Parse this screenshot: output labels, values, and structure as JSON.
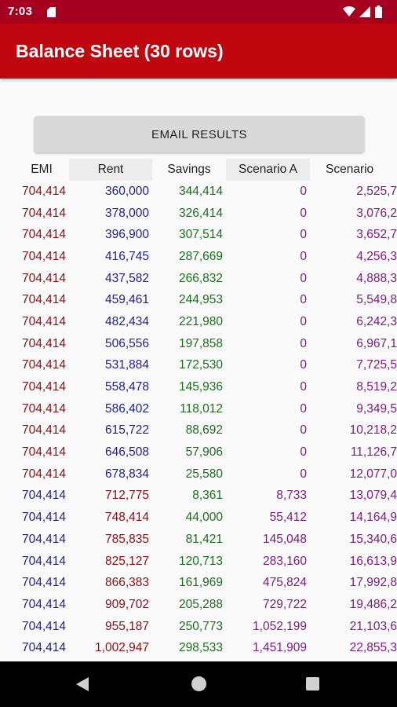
{
  "status_bar": {
    "time": "7:03"
  },
  "app_bar": {
    "title": "Balance Sheet (30 rows)"
  },
  "actions": {
    "email_label": "EMAIL RESULTS"
  },
  "table": {
    "headers": [
      "EMI",
      "Rent",
      "Savings",
      "Scenario A",
      "Scenario"
    ],
    "rows": [
      [
        "704,414",
        "360,000",
        "344,414",
        "0",
        "2,525,7"
      ],
      [
        "704,414",
        "378,000",
        "326,414",
        "0",
        "3,076,2"
      ],
      [
        "704,414",
        "396,900",
        "307,514",
        "0",
        "3,652,7"
      ],
      [
        "704,414",
        "416,745",
        "287,669",
        "0",
        "4,256,3"
      ],
      [
        "704,414",
        "437,582",
        "266,832",
        "0",
        "4,888,3"
      ],
      [
        "704,414",
        "459,461",
        "244,953",
        "0",
        "5,549,8"
      ],
      [
        "704,414",
        "482,434",
        "221,980",
        "0",
        "6,242,3"
      ],
      [
        "704,414",
        "506,556",
        "197,858",
        "0",
        "6,967,1"
      ],
      [
        "704,414",
        "531,884",
        "172,530",
        "0",
        "7,725,5"
      ],
      [
        "704,414",
        "558,478",
        "145,936",
        "0",
        "8,519,2"
      ],
      [
        "704,414",
        "586,402",
        "118,012",
        "0",
        "9,349,5"
      ],
      [
        "704,414",
        "615,722",
        "88,692",
        "0",
        "10,218,2"
      ],
      [
        "704,414",
        "646,508",
        "57,906",
        "0",
        "11,126,7"
      ],
      [
        "704,414",
        "678,834",
        "25,580",
        "0",
        "12,077,0"
      ],
      [
        "704,414",
        "712,775",
        "8,361",
        "8,733",
        "13,079,4"
      ],
      [
        "704,414",
        "748,414",
        "44,000",
        "55,412",
        "14,164,9"
      ],
      [
        "704,414",
        "785,835",
        "81,421",
        "145,048",
        "15,340,6"
      ],
      [
        "704,414",
        "825,127",
        "120,713",
        "283,160",
        "16,613,9"
      ],
      [
        "704,414",
        "866,383",
        "161,969",
        "475,824",
        "17,992,8"
      ],
      [
        "704,414",
        "909,702",
        "205,288",
        "729,722",
        "19,486,2"
      ],
      [
        "704,414",
        "955,187",
        "250,773",
        "1,052,199",
        "21,103,6"
      ],
      [
        "704,414",
        "1,002,947",
        "298,533",
        "1,451,909",
        "22,855,3"
      ]
    ]
  },
  "colors": {
    "status_bar": "#a50020",
    "app_bar": "#c0070f",
    "red_text": "#8b0e14",
    "blue_text": "#1f1f8a",
    "green_text": "#187018",
    "purple_text": "#7e1a82"
  },
  "icons": {
    "status": [
      "sd-card-icon",
      "wifi-icon",
      "cellular-signal-icon",
      "battery-icon"
    ],
    "navigation": [
      "back-icon",
      "home-icon",
      "recents-icon"
    ]
  }
}
